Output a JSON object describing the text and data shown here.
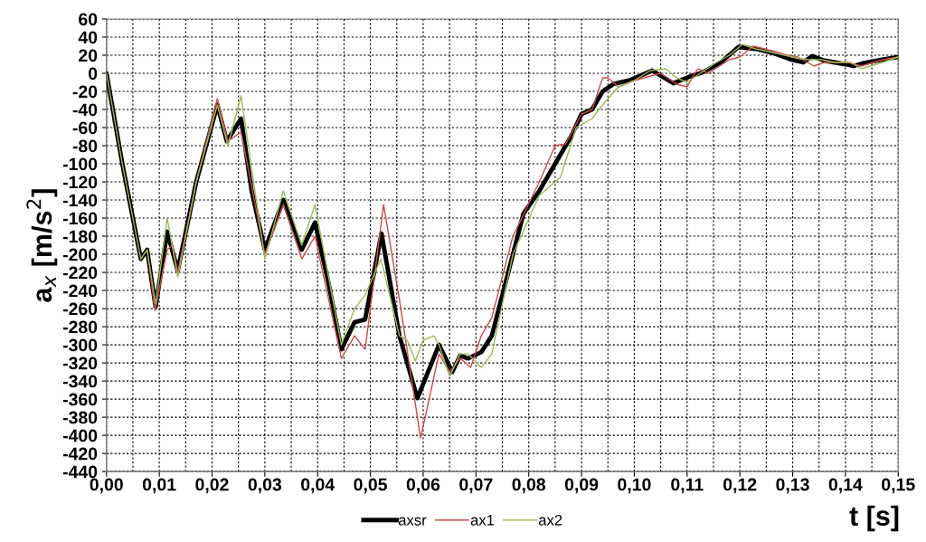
{
  "chart_data": {
    "type": "line",
    "xlabel": "t [s]",
    "ylabel": "a$_{x}$ [m/s$^{2}$]",
    "xlim": [
      0,
      0.15
    ],
    "ylim": [
      -440,
      60
    ],
    "xticks": [
      {
        "value": 0,
        "label": "0,00"
      },
      {
        "value": 0.01,
        "label": "0,01"
      },
      {
        "value": 0.02,
        "label": "0,02"
      },
      {
        "value": 0.03,
        "label": "0,03"
      },
      {
        "value": 0.04,
        "label": "0,04"
      },
      {
        "value": 0.05,
        "label": "0,05"
      },
      {
        "value": 0.06,
        "label": "0,06"
      },
      {
        "value": 0.07,
        "label": "0,07"
      },
      {
        "value": 0.08,
        "label": "0,08"
      },
      {
        "value": 0.09,
        "label": "0,09"
      },
      {
        "value": 0.1,
        "label": "0,10"
      },
      {
        "value": 0.11,
        "label": "0,11"
      },
      {
        "value": 0.12,
        "label": "0,12"
      },
      {
        "value": 0.13,
        "label": "0,13"
      },
      {
        "value": 0.14,
        "label": "0,14"
      },
      {
        "value": 0.15,
        "label": "0,15"
      }
    ],
    "yticks": [
      60,
      40,
      20,
      0,
      -20,
      -40,
      -60,
      -80,
      -100,
      -120,
      -140,
      -160,
      -180,
      -200,
      -220,
      -240,
      -260,
      -280,
      -300,
      -320,
      -340,
      -360,
      -380,
      -400,
      -420,
      -440
    ],
    "grid": true,
    "legend": "bottom",
    "marker": "none",
    "line_style": "solid",
    "series": [
      {
        "name": "axsr",
        "color": "#000000",
        "x": [
          0,
          0.003,
          0.0065,
          0.0077,
          0.0093,
          0.0115,
          0.0135,
          0.017,
          0.021,
          0.0228,
          0.0255,
          0.0275,
          0.03,
          0.0335,
          0.037,
          0.0395,
          0.042,
          0.0445,
          0.047,
          0.049,
          0.0521,
          0.0555,
          0.0589,
          0.063,
          0.0655,
          0.067,
          0.0685,
          0.071,
          0.073,
          0.077,
          0.079,
          0.082,
          0.085,
          0.088,
          0.09,
          0.092,
          0.094,
          0.096,
          0.099,
          0.1034,
          0.1074,
          0.1108,
          0.113,
          0.1164,
          0.1197,
          0.123,
          0.1265,
          0.1298,
          0.132,
          0.1337,
          0.136,
          0.14,
          0.1415,
          0.1433,
          0.147,
          0.15
        ],
        "values": [
          0,
          -100,
          -205,
          -195,
          -258,
          -175,
          -218,
          -120,
          -35,
          -75,
          -50,
          -130,
          -195,
          -140,
          -195,
          -165,
          -230,
          -305,
          -275,
          -272,
          -177,
          -290,
          -359,
          -300,
          -330,
          -312,
          -315,
          -308,
          -290,
          -200,
          -155,
          -130,
          -100,
          -70,
          -45,
          -40,
          -20,
          -12,
          -8,
          3,
          -11,
          -3,
          1,
          12,
          29,
          27,
          22,
          15,
          12,
          19,
          14,
          10,
          8,
          11,
          15,
          18
        ]
      },
      {
        "name": "ax1",
        "color": "#d04a4a",
        "x": [
          0.0065,
          0.0077,
          0.0092,
          0.0115,
          0.0125,
          0.0135,
          0.017,
          0.021,
          0.023,
          0.0255,
          0.03,
          0.0335,
          0.037,
          0.0395,
          0.0445,
          0.047,
          0.049,
          0.0525,
          0.0555,
          0.0595,
          0.063,
          0.065,
          0.067,
          0.069,
          0.071,
          0.073,
          0.077,
          0.082,
          0.085,
          0.087,
          0.09,
          0.092,
          0.094,
          0.095,
          0.097,
          0.1,
          0.105,
          0.108,
          0.11,
          0.112,
          0.114,
          0.118,
          0.12,
          0.1225,
          0.126,
          0.129,
          0.131,
          0.134,
          0.136,
          0.1405,
          0.143,
          0.147,
          0.15
        ],
        "values": [
          -205,
          -195,
          -262,
          -195,
          -190,
          -220,
          -120,
          -28,
          -75,
          -65,
          -200,
          -145,
          -205,
          -180,
          -315,
          -290,
          -305,
          -145,
          -250,
          -403,
          -310,
          -330,
          -315,
          -325,
          -290,
          -270,
          -180,
          -120,
          -80,
          -78,
          -45,
          -40,
          -5,
          -5,
          -15,
          -8,
          0,
          -12,
          -15,
          5,
          0,
          15,
          18,
          30,
          25,
          20,
          18,
          8,
          12,
          12,
          8,
          15,
          18
        ]
      },
      {
        "name": "ax2",
        "color": "#9bbb59",
        "x": [
          0,
          0.003,
          0.0065,
          0.0077,
          0.0093,
          0.0115,
          0.0135,
          0.017,
          0.021,
          0.023,
          0.0255,
          0.03,
          0.0335,
          0.037,
          0.0395,
          0.0445,
          0.047,
          0.049,
          0.052,
          0.0555,
          0.057,
          0.0585,
          0.06,
          0.062,
          0.063,
          0.065,
          0.067,
          0.0685,
          0.071,
          0.073,
          0.077,
          0.082,
          0.086,
          0.089,
          0.092,
          0.094,
          0.0955,
          0.097,
          0.1,
          0.103,
          0.106,
          0.108,
          0.11,
          0.112,
          0.115,
          0.118,
          0.1205,
          0.123,
          0.127,
          0.13,
          0.133,
          0.1355,
          0.138,
          0.141,
          0.143,
          0.147,
          0.15
        ],
        "values": [
          0,
          -100,
          -205,
          -195,
          -255,
          -160,
          -225,
          -120,
          -35,
          -80,
          -25,
          -205,
          -130,
          -190,
          -145,
          -300,
          -260,
          -245,
          -205,
          -290,
          -295,
          -318,
          -295,
          -290,
          -300,
          -335,
          -310,
          -310,
          -325,
          -310,
          -200,
          -135,
          -115,
          -60,
          -50,
          -35,
          -25,
          -15,
          -8,
          3,
          5,
          -5,
          -10,
          -2,
          10,
          20,
          32,
          27,
          22,
          18,
          15,
          15,
          12,
          12,
          5,
          12,
          18
        ]
      }
    ]
  }
}
